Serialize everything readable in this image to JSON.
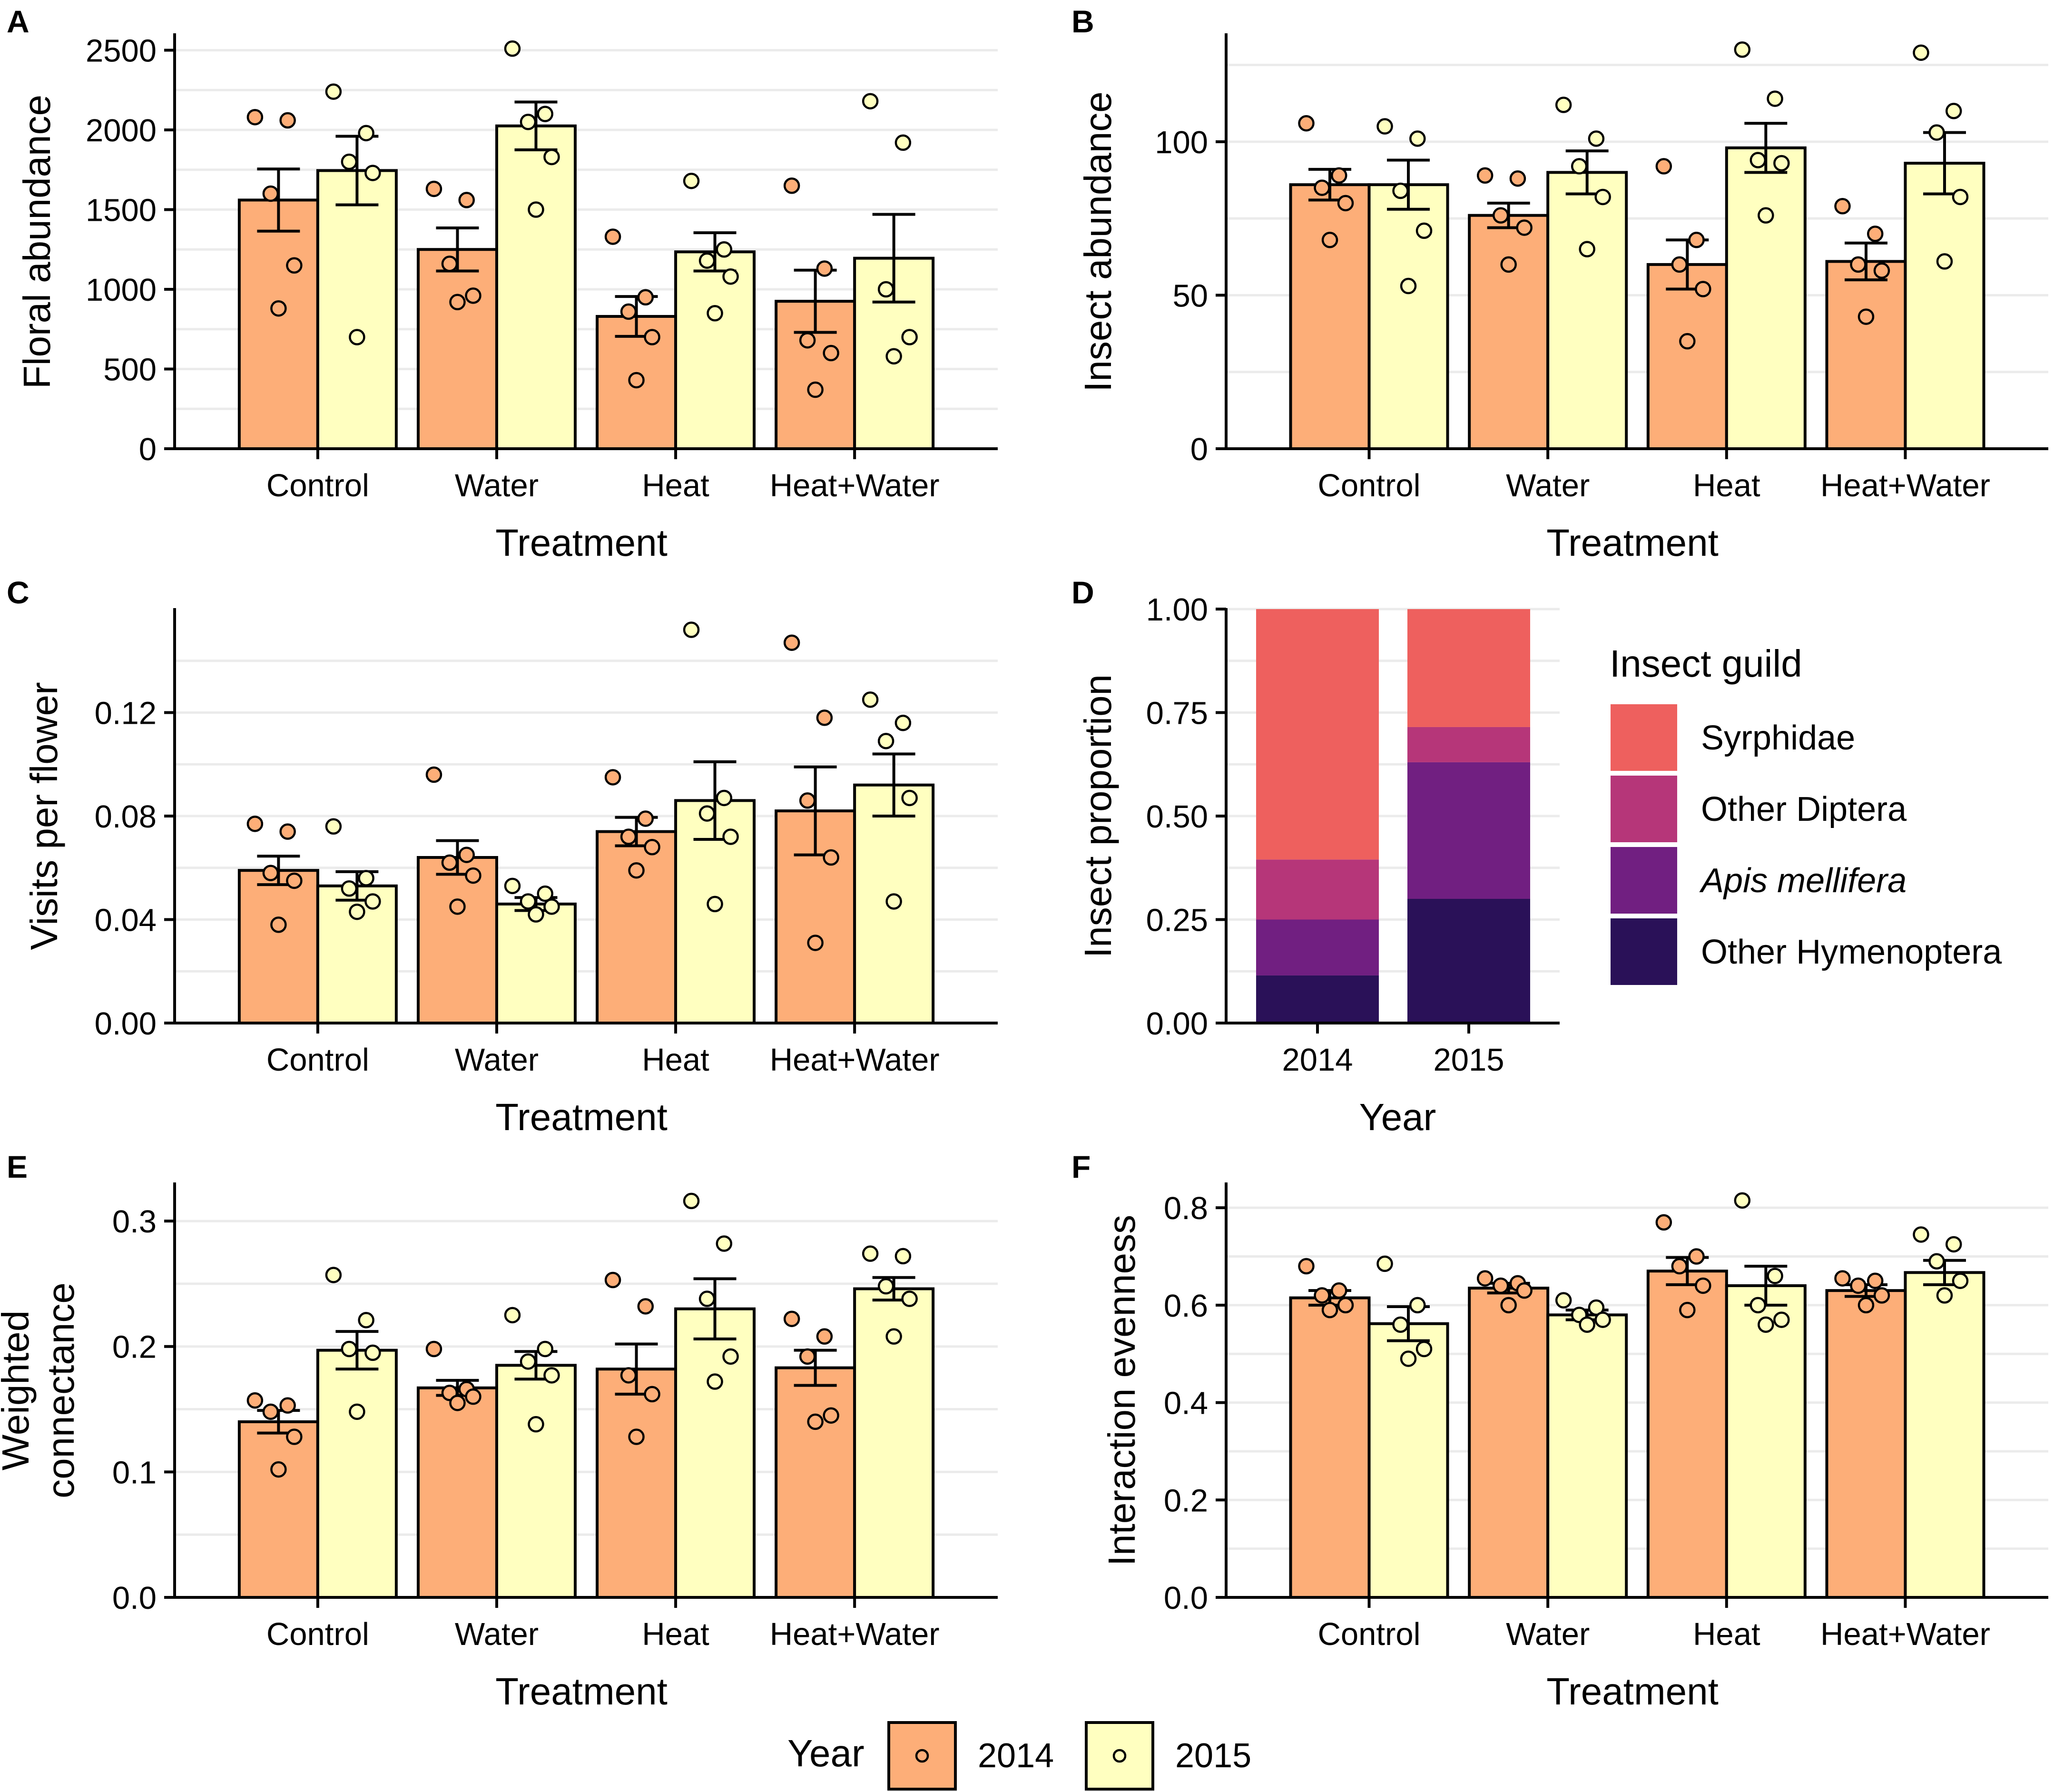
{
  "chart_data": [
    {
      "id": "A",
      "label": "A",
      "type": "bar",
      "ylabel": "Floral abundance",
      "xlabel": "Treatment",
      "ylim": [
        0,
        2600
      ],
      "yticks": [
        0,
        500,
        1000,
        1500,
        2000,
        2500
      ],
      "ytick_labels": [
        "0",
        "500",
        "1000",
        "1500",
        "2000",
        "2500"
      ],
      "categories": [
        "Control",
        "Water",
        "Heat",
        "Heat+Water"
      ],
      "series": [
        {
          "name": "2014",
          "values": [
            1560,
            1250,
            830,
            925
          ],
          "se": [
            195,
            135,
            125,
            195
          ],
          "points": [
            [
              2080,
              2060,
              1600,
              1150,
              880
            ],
            [
              1630,
              1560,
              1160,
              960,
              920
            ],
            [
              1330,
              950,
              860,
              700,
              430
            ],
            [
              1650,
              1130,
              680,
              600,
              370
            ]
          ]
        },
        {
          "name": "2015",
          "values": [
            1745,
            2025,
            1235,
            1195
          ],
          "se": [
            215,
            150,
            120,
            275
          ],
          "points": [
            [
              2240,
              1980,
              1800,
              1730,
              700
            ],
            [
              2510,
              2100,
              2050,
              1830,
              1500
            ],
            [
              1680,
              1250,
              1180,
              1080,
              850
            ],
            [
              2180,
              1920,
              1000,
              700,
              580
            ]
          ]
        }
      ]
    },
    {
      "id": "B",
      "label": "B",
      "type": "bar",
      "ylabel": "Insect abundance",
      "xlabel": "Treatment",
      "ylim": [
        0,
        135
      ],
      "yticks": [
        0,
        50,
        100
      ],
      "ytick_labels": [
        "0",
        "50",
        "100"
      ],
      "categories": [
        "Control",
        "Water",
        "Heat",
        "Heat+Water"
      ],
      "series": [
        {
          "name": "2014",
          "values": [
            86,
            76,
            60,
            61
          ],
          "se": [
            5,
            4,
            8,
            6
          ],
          "points": [
            [
              106,
              89,
              85,
              80,
              68
            ],
            [
              89,
              88,
              76,
              72,
              60
            ],
            [
              92,
              68,
              60,
              52,
              35
            ],
            [
              79,
              70,
              60,
              58,
              43
            ]
          ]
        },
        {
          "name": "2015",
          "values": [
            86,
            90,
            98,
            93
          ],
          "se": [
            8,
            7,
            8,
            10
          ],
          "points": [
            [
              105,
              101,
              84,
              71,
              53
            ],
            [
              112,
              101,
              92,
              82,
              65
            ],
            [
              130,
              114,
              94,
              93,
              76
            ],
            [
              129,
              110,
              103,
              82,
              61
            ]
          ]
        }
      ]
    },
    {
      "id": "C",
      "label": "C",
      "type": "bar",
      "ylabel": "Visits per flower",
      "xlabel": "Treatment",
      "ylim": [
        0,
        0.16
      ],
      "yticks": [
        0.0,
        0.04,
        0.08,
        0.12
      ],
      "ytick_labels": [
        "0.00",
        "0.04",
        "0.08",
        "0.12"
      ],
      "categories": [
        "Control",
        "Water",
        "Heat",
        "Heat+Water"
      ],
      "series": [
        {
          "name": "2014",
          "values": [
            0.059,
            0.064,
            0.074,
            0.082
          ],
          "se": [
            0.0055,
            0.0065,
            0.0055,
            0.017
          ],
          "points": [
            [
              0.077,
              0.074,
              0.058,
              0.055,
              0.038
            ],
            [
              0.096,
              0.065,
              0.062,
              0.057,
              0.045
            ],
            [
              0.095,
              0.079,
              0.072,
              0.068,
              0.059
            ],
            [
              0.147,
              0.118,
              0.086,
              0.064,
              0.031
            ]
          ]
        },
        {
          "name": "2015",
          "values": [
            0.053,
            0.046,
            0.086,
            0.092
          ],
          "se": [
            0.0055,
            0.0025,
            0.015,
            0.012
          ],
          "points": [
            [
              0.076,
              0.056,
              0.052,
              0.047,
              0.043
            ],
            [
              0.053,
              0.05,
              0.047,
              0.045,
              0.042
            ],
            [
              0.152,
              0.087,
              0.081,
              0.072,
              0.046
            ],
            [
              0.125,
              0.116,
              0.109,
              0.087,
              0.047
            ]
          ]
        }
      ]
    },
    {
      "id": "E",
      "label": "E",
      "type": "bar",
      "ylabel": [
        "Weighted",
        "connectance"
      ],
      "xlabel": "Treatment",
      "ylim": [
        0,
        0.33
      ],
      "yticks": [
        0.0,
        0.1,
        0.2,
        0.3
      ],
      "ytick_labels": [
        "0.0",
        "0.1",
        "0.2",
        "0.3"
      ],
      "categories": [
        "Control",
        "Water",
        "Heat",
        "Heat+Water"
      ],
      "series": [
        {
          "name": "2014",
          "values": [
            0.14,
            0.167,
            0.182,
            0.183
          ],
          "se": [
            0.009,
            0.006,
            0.02,
            0.014
          ],
          "points": [
            [
              0.157,
              0.153,
              0.148,
              0.128,
              0.102
            ],
            [
              0.198,
              0.166,
              0.163,
              0.16,
              0.155
            ],
            [
              0.253,
              0.232,
              0.177,
              0.162,
              0.128
            ],
            [
              0.222,
              0.208,
              0.192,
              0.145,
              0.14
            ]
          ]
        },
        {
          "name": "2015",
          "values": [
            0.197,
            0.185,
            0.23,
            0.246
          ],
          "se": [
            0.015,
            0.011,
            0.024,
            0.009
          ],
          "points": [
            [
              0.257,
              0.221,
              0.198,
              0.195,
              0.148
            ],
            [
              0.225,
              0.198,
              0.188,
              0.177,
              0.138
            ],
            [
              0.316,
              0.282,
              0.238,
              0.192,
              0.172
            ],
            [
              0.274,
              0.272,
              0.248,
              0.238,
              0.208
            ]
          ]
        }
      ]
    },
    {
      "id": "F",
      "label": "F",
      "type": "bar",
      "ylabel": "Interaction evenness",
      "xlabel": "Treatment",
      "ylim": [
        0,
        0.85
      ],
      "yticks": [
        0.0,
        0.2,
        0.4,
        0.6,
        0.8
      ],
      "ytick_labels": [
        "0.0",
        "0.2",
        "0.4",
        "0.6",
        "0.8"
      ],
      "categories": [
        "Control",
        "Water",
        "Heat",
        "Heat+Water"
      ],
      "series": [
        {
          "name": "2014",
          "values": [
            0.615,
            0.635,
            0.67,
            0.63
          ],
          "se": [
            0.015,
            0.01,
            0.028,
            0.012
          ],
          "points": [
            [
              0.68,
              0.63,
              0.62,
              0.6,
              0.59
            ],
            [
              0.655,
              0.645,
              0.64,
              0.63,
              0.6
            ],
            [
              0.77,
              0.7,
              0.68,
              0.64,
              0.59
            ],
            [
              0.655,
              0.65,
              0.64,
              0.62,
              0.6
            ]
          ]
        },
        {
          "name": "2015",
          "values": [
            0.562,
            0.58,
            0.64,
            0.667
          ],
          "se": [
            0.035,
            0.01,
            0.04,
            0.025
          ],
          "points": [
            [
              0.685,
              0.6,
              0.56,
              0.51,
              0.49
            ],
            [
              0.61,
              0.595,
              0.58,
              0.57,
              0.56
            ],
            [
              0.815,
              0.66,
              0.6,
              0.57,
              0.56
            ],
            [
              0.745,
              0.725,
              0.69,
              0.65,
              0.62
            ]
          ]
        }
      ]
    },
    {
      "id": "D",
      "label": "D",
      "type": "stacked_bar",
      "ylabel": "Insect proportion",
      "xlabel": "Year",
      "ylim": [
        0,
        1
      ],
      "yticks": [
        0.0,
        0.25,
        0.5,
        0.75,
        1.0
      ],
      "ytick_labels": [
        "0.00",
        "0.25",
        "0.50",
        "0.75",
        "1.00"
      ],
      "categories": [
        "2014",
        "2015"
      ],
      "series": [
        {
          "name": "Other Hymenoptera",
          "italic": false,
          "color": "#2a1158",
          "values": [
            0.115,
            0.3
          ]
        },
        {
          "name": "Apis mellifera",
          "italic": true,
          "color": "#711f81",
          "values": [
            0.135,
            0.33
          ]
        },
        {
          "name": "Other Diptera",
          "italic": false,
          "color": "#b63679",
          "values": [
            0.145,
            0.085
          ]
        },
        {
          "name": "Syrphidae",
          "italic": false,
          "color": "#ee605e",
          "values": [
            0.605,
            0.285
          ]
        }
      ],
      "legend_title": "Insect guild",
      "legend_order": [
        "Syrphidae",
        "Other Diptera",
        "Apis mellifera",
        "Other Hymenoptera"
      ]
    }
  ],
  "legend": {
    "title": "Year",
    "items": [
      {
        "label": "2014",
        "color": "#fdae78"
      },
      {
        "label": "2015",
        "color": "#ffffc0"
      }
    ]
  },
  "colors": {
    "y2014": "#fdae78",
    "y2015": "#ffffc0",
    "grid": "#ebebeb"
  }
}
